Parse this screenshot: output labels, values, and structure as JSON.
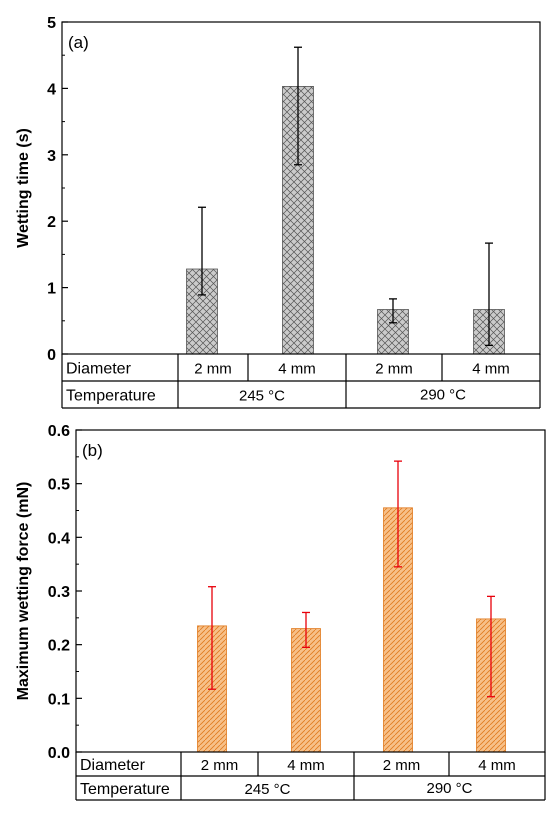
{
  "chart_data": [
    {
      "type": "bar",
      "panel_label": "(a)",
      "ylabel": "Wetting time (s)",
      "ylim": [
        0,
        5
      ],
      "yticks": [
        0,
        1,
        2,
        3,
        4,
        5
      ],
      "yticks_labels": [
        "0",
        "1",
        "2",
        "3",
        "4",
        "5"
      ],
      "categories": [
        "2 mm",
        "4 mm",
        "2 mm",
        "4 mm"
      ],
      "values": [
        1.28,
        4.03,
        0.67,
        0.67
      ],
      "error_upper": [
        2.21,
        4.62,
        0.83,
        1.67
      ],
      "error_lower": [
        0.89,
        2.85,
        0.47,
        0.13
      ],
      "bar_color": "#c8c8c8",
      "hatch": "crosshatch",
      "error_color": "#000000",
      "table": {
        "row1_label": "Diameter",
        "row2_label": "Temperature",
        "groups": [
          "245 °C",
          "290 °C"
        ]
      }
    },
    {
      "type": "bar",
      "panel_label": "(b)",
      "ylabel": "Maximum wetting force (mN)",
      "ylim": [
        0,
        0.6
      ],
      "yticks": [
        0,
        0.1,
        0.2,
        0.3,
        0.4,
        0.5,
        0.6
      ],
      "yticks_labels": [
        "0.0",
        "0.1",
        "0.2",
        "0.3",
        "0.4",
        "0.5",
        "0.6"
      ],
      "categories": [
        "2 mm",
        "4 mm",
        "2 mm",
        "4 mm"
      ],
      "values": [
        0.235,
        0.23,
        0.455,
        0.248
      ],
      "error_upper": [
        0.308,
        0.26,
        0.542,
        0.29
      ],
      "error_lower": [
        0.117,
        0.195,
        0.345,
        0.103
      ],
      "bar_color": "#f2b072",
      "hatch": "diagonal",
      "error_color": "#e8000b",
      "table": {
        "row1_label": "Diameter",
        "row2_label": "Temperature",
        "groups": [
          "245 °C",
          "290 °C"
        ]
      }
    }
  ]
}
